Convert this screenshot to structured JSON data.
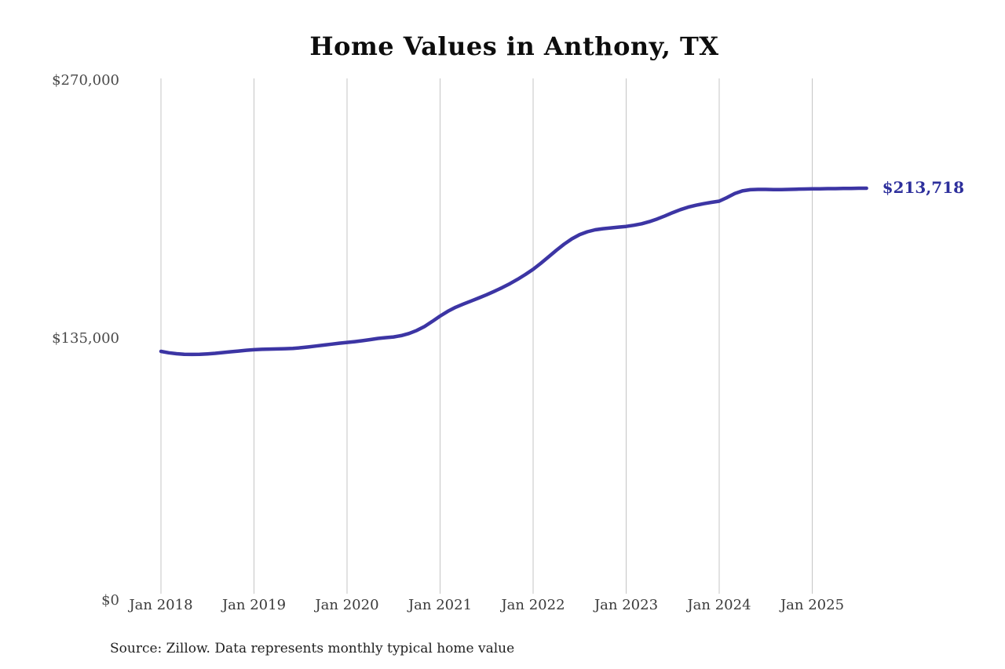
{
  "title": "Home Values in Anthony, TX",
  "source_note": "Source: Zillow. Data represents monthly typical home value",
  "end_label": "$213,718",
  "colors": {
    "line": "#3c35a4",
    "end_label": "#2d2f9c",
    "gridline": "#c5c5c5",
    "background": "#ffffff",
    "title_text": "#0d0d0d",
    "y_tick_text": "#4a4a4a",
    "x_tick_text": "#3a3a3a",
    "source_text": "#1f1f1f"
  },
  "chart_data": {
    "type": "line",
    "title": "Home Values in Anthony, TX",
    "xlabel": "",
    "ylabel": "",
    "ylim": [
      0,
      270000
    ],
    "grid": "vertical-only",
    "x_start_month": "2018-01",
    "x_end_month": "2025-08",
    "x_ticks": [
      {
        "label": "Jan 2018",
        "month_index": 0
      },
      {
        "label": "Jan 2019",
        "month_index": 12
      },
      {
        "label": "Jan 2020",
        "month_index": 24
      },
      {
        "label": "Jan 2021",
        "month_index": 36
      },
      {
        "label": "Jan 2022",
        "month_index": 48
      },
      {
        "label": "Jan 2023",
        "month_index": 60
      },
      {
        "label": "Jan 2024",
        "month_index": 72
      },
      {
        "label": "Jan 2025",
        "month_index": 84
      }
    ],
    "y_ticks": [
      {
        "label": "$0",
        "value": 0
      },
      {
        "label": "$135,000",
        "value": 135000
      },
      {
        "label": "$270,000",
        "value": 270000
      }
    ],
    "series": [
      {
        "name": "Monthly typical home value",
        "final_value": 213718,
        "values": [
          128200,
          127500,
          127000,
          126700,
          126600,
          126700,
          126900,
          127200,
          127600,
          128000,
          128400,
          128800,
          129100,
          129300,
          129400,
          129500,
          129600,
          129800,
          130100,
          130500,
          131000,
          131500,
          132000,
          132500,
          132900,
          133300,
          133800,
          134400,
          135000,
          135400,
          135800,
          136500,
          137600,
          139200,
          141300,
          143900,
          146700,
          149200,
          151300,
          153000,
          154600,
          156200,
          157900,
          159700,
          161600,
          163700,
          166000,
          168500,
          171200,
          174400,
          177800,
          181200,
          184400,
          187200,
          189400,
          190900,
          191900,
          192500,
          192900,
          193300,
          193700,
          194300,
          195100,
          196200,
          197600,
          199200,
          200900,
          202500,
          203800,
          204800,
          205600,
          206300,
          206900,
          208800,
          210900,
          212300,
          212900,
          213100,
          213100,
          213000,
          213000,
          213100,
          213200,
          213300,
          213400,
          213400,
          213500,
          213500,
          213600,
          213600,
          213700,
          213718
        ]
      }
    ]
  }
}
